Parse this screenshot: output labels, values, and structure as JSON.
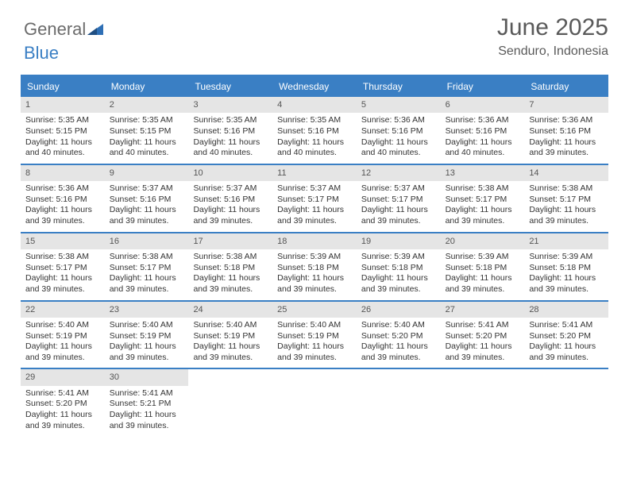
{
  "logo": {
    "word1": "General",
    "word2": "Blue"
  },
  "title": "June 2025",
  "subtitle": "Senduro, Indonesia",
  "colors": {
    "header_blue": "#3a7fc4",
    "daynum_bg": "#e5e5e5",
    "text": "#333333",
    "title_text": "#5a5a5a",
    "background": "#ffffff"
  },
  "font_sizes": {
    "title": 30,
    "subtitle": 16,
    "dow": 12,
    "cell": 10.5,
    "daynum": 11,
    "logo": 22
  },
  "day_names": [
    "Sunday",
    "Monday",
    "Tuesday",
    "Wednesday",
    "Thursday",
    "Friday",
    "Saturday"
  ],
  "weeks": [
    [
      {
        "day": "1",
        "sunrise": "Sunrise: 5:35 AM",
        "sunset": "Sunset: 5:15 PM",
        "daylight": "Daylight: 11 hours and 40 minutes."
      },
      {
        "day": "2",
        "sunrise": "Sunrise: 5:35 AM",
        "sunset": "Sunset: 5:15 PM",
        "daylight": "Daylight: 11 hours and 40 minutes."
      },
      {
        "day": "3",
        "sunrise": "Sunrise: 5:35 AM",
        "sunset": "Sunset: 5:16 PM",
        "daylight": "Daylight: 11 hours and 40 minutes."
      },
      {
        "day": "4",
        "sunrise": "Sunrise: 5:35 AM",
        "sunset": "Sunset: 5:16 PM",
        "daylight": "Daylight: 11 hours and 40 minutes."
      },
      {
        "day": "5",
        "sunrise": "Sunrise: 5:36 AM",
        "sunset": "Sunset: 5:16 PM",
        "daylight": "Daylight: 11 hours and 40 minutes."
      },
      {
        "day": "6",
        "sunrise": "Sunrise: 5:36 AM",
        "sunset": "Sunset: 5:16 PM",
        "daylight": "Daylight: 11 hours and 40 minutes."
      },
      {
        "day": "7",
        "sunrise": "Sunrise: 5:36 AM",
        "sunset": "Sunset: 5:16 PM",
        "daylight": "Daylight: 11 hours and 39 minutes."
      }
    ],
    [
      {
        "day": "8",
        "sunrise": "Sunrise: 5:36 AM",
        "sunset": "Sunset: 5:16 PM",
        "daylight": "Daylight: 11 hours and 39 minutes."
      },
      {
        "day": "9",
        "sunrise": "Sunrise: 5:37 AM",
        "sunset": "Sunset: 5:16 PM",
        "daylight": "Daylight: 11 hours and 39 minutes."
      },
      {
        "day": "10",
        "sunrise": "Sunrise: 5:37 AM",
        "sunset": "Sunset: 5:16 PM",
        "daylight": "Daylight: 11 hours and 39 minutes."
      },
      {
        "day": "11",
        "sunrise": "Sunrise: 5:37 AM",
        "sunset": "Sunset: 5:17 PM",
        "daylight": "Daylight: 11 hours and 39 minutes."
      },
      {
        "day": "12",
        "sunrise": "Sunrise: 5:37 AM",
        "sunset": "Sunset: 5:17 PM",
        "daylight": "Daylight: 11 hours and 39 minutes."
      },
      {
        "day": "13",
        "sunrise": "Sunrise: 5:38 AM",
        "sunset": "Sunset: 5:17 PM",
        "daylight": "Daylight: 11 hours and 39 minutes."
      },
      {
        "day": "14",
        "sunrise": "Sunrise: 5:38 AM",
        "sunset": "Sunset: 5:17 PM",
        "daylight": "Daylight: 11 hours and 39 minutes."
      }
    ],
    [
      {
        "day": "15",
        "sunrise": "Sunrise: 5:38 AM",
        "sunset": "Sunset: 5:17 PM",
        "daylight": "Daylight: 11 hours and 39 minutes."
      },
      {
        "day": "16",
        "sunrise": "Sunrise: 5:38 AM",
        "sunset": "Sunset: 5:17 PM",
        "daylight": "Daylight: 11 hours and 39 minutes."
      },
      {
        "day": "17",
        "sunrise": "Sunrise: 5:38 AM",
        "sunset": "Sunset: 5:18 PM",
        "daylight": "Daylight: 11 hours and 39 minutes."
      },
      {
        "day": "18",
        "sunrise": "Sunrise: 5:39 AM",
        "sunset": "Sunset: 5:18 PM",
        "daylight": "Daylight: 11 hours and 39 minutes."
      },
      {
        "day": "19",
        "sunrise": "Sunrise: 5:39 AM",
        "sunset": "Sunset: 5:18 PM",
        "daylight": "Daylight: 11 hours and 39 minutes."
      },
      {
        "day": "20",
        "sunrise": "Sunrise: 5:39 AM",
        "sunset": "Sunset: 5:18 PM",
        "daylight": "Daylight: 11 hours and 39 minutes."
      },
      {
        "day": "21",
        "sunrise": "Sunrise: 5:39 AM",
        "sunset": "Sunset: 5:18 PM",
        "daylight": "Daylight: 11 hours and 39 minutes."
      }
    ],
    [
      {
        "day": "22",
        "sunrise": "Sunrise: 5:40 AM",
        "sunset": "Sunset: 5:19 PM",
        "daylight": "Daylight: 11 hours and 39 minutes."
      },
      {
        "day": "23",
        "sunrise": "Sunrise: 5:40 AM",
        "sunset": "Sunset: 5:19 PM",
        "daylight": "Daylight: 11 hours and 39 minutes."
      },
      {
        "day": "24",
        "sunrise": "Sunrise: 5:40 AM",
        "sunset": "Sunset: 5:19 PM",
        "daylight": "Daylight: 11 hours and 39 minutes."
      },
      {
        "day": "25",
        "sunrise": "Sunrise: 5:40 AM",
        "sunset": "Sunset: 5:19 PM",
        "daylight": "Daylight: 11 hours and 39 minutes."
      },
      {
        "day": "26",
        "sunrise": "Sunrise: 5:40 AM",
        "sunset": "Sunset: 5:20 PM",
        "daylight": "Daylight: 11 hours and 39 minutes."
      },
      {
        "day": "27",
        "sunrise": "Sunrise: 5:41 AM",
        "sunset": "Sunset: 5:20 PM",
        "daylight": "Daylight: 11 hours and 39 minutes."
      },
      {
        "day": "28",
        "sunrise": "Sunrise: 5:41 AM",
        "sunset": "Sunset: 5:20 PM",
        "daylight": "Daylight: 11 hours and 39 minutes."
      }
    ],
    [
      {
        "day": "29",
        "sunrise": "Sunrise: 5:41 AM",
        "sunset": "Sunset: 5:20 PM",
        "daylight": "Daylight: 11 hours and 39 minutes."
      },
      {
        "day": "30",
        "sunrise": "Sunrise: 5:41 AM",
        "sunset": "Sunset: 5:21 PM",
        "daylight": "Daylight: 11 hours and 39 minutes."
      },
      null,
      null,
      null,
      null,
      null
    ]
  ]
}
